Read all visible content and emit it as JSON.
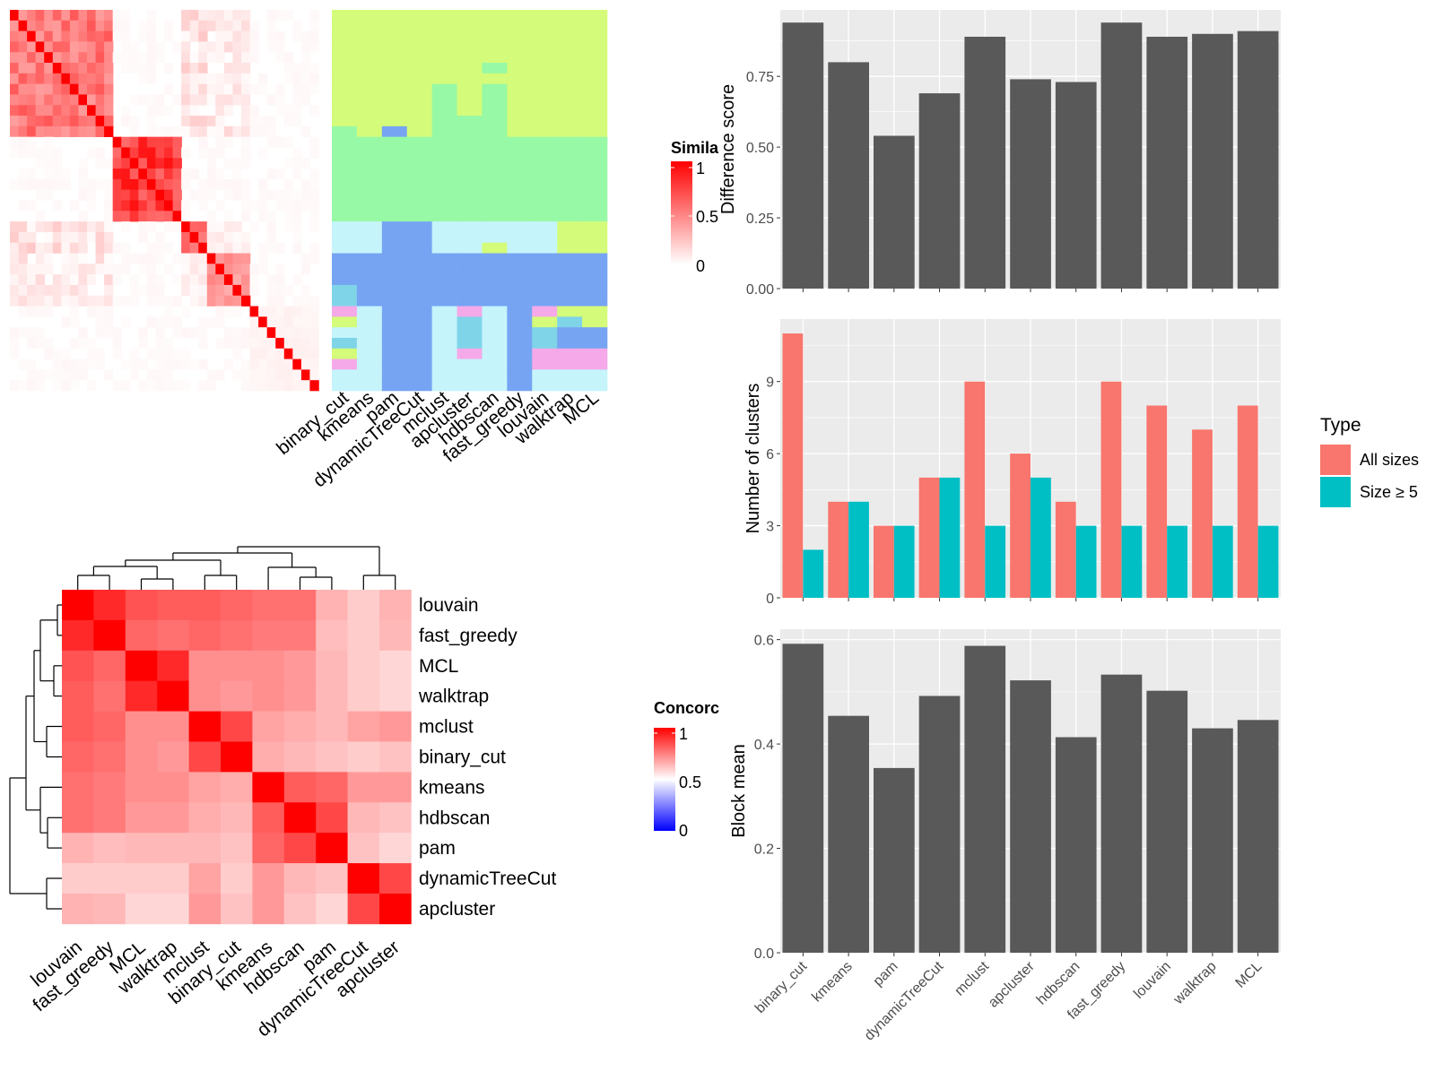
{
  "colors": {
    "panel_bg": "#EBEBEB",
    "grid": "#FFFFFF",
    "bar": "#595959",
    "all_sizes": "#F8766D",
    "size_ge_5": "#00BFC4",
    "heat_high": "#FF0000",
    "heat_low": "#FFFFFF",
    "concord_low": "#0000FF"
  },
  "chart_data": [
    {
      "type": "heatmap",
      "id": "similarity",
      "legend": {
        "title": "Simila",
        "ticks": [
          "1",
          "0.5",
          "0"
        ]
      },
      "groups": [
        {
          "n": 12,
          "base": 0.55
        },
        {
          "n": 8,
          "base": 0.78
        },
        {
          "n": 3,
          "base": 0.62
        },
        {
          "n": 5,
          "base": 0.42
        },
        {
          "n": 8,
          "base": 0.05
        }
      ],
      "class_colors": {
        "A": "#D4FB79",
        "B": "#97F9A5",
        "C": "#C5F4FB",
        "D": "#76A4F3",
        "E": "#7FD4E8",
        "F": "#F5A9E8"
      },
      "class_columns": [
        "binary_cut",
        "kmeans",
        "pam",
        "dynamicTreeCut",
        "mclust",
        "apcluster",
        "hdbscan",
        "fast_greedy",
        "louvain",
        "walktrap",
        "MCL"
      ],
      "class_rows": [
        "AAAAAAAAAAA",
        "AAAAAAAAAAA",
        "AAAAAAAAAAA",
        "AAAAAAAAAAA",
        "AAAAAAAAAAA",
        "AAAAAABAAAA",
        "AAAAAAAAAAA",
        "AAAABABAAAA",
        "AAAABABAAAA",
        "AAAABABAAAA",
        "AAAABBBAAAA",
        "BADABBBAAAA",
        "BBBBBBBBBBB",
        "BBBBBBBBBBB",
        "BBBBBBBBBBB",
        "BBBBBBBBBBB",
        "BBBBBBBBBBB",
        "BBBBBBBBBBB",
        "BBBBBBBBBBB",
        "BBBBBBBBBBB",
        "CCDDCCCCCAA",
        "CCDDCCCCCAA",
        "CCDDCCACCAA",
        "DDDDDDDDDDD",
        "DDDDDDDDDDD",
        "DDDDDDDDDDD",
        "EDDDDDDDDDD",
        "EDDDDDDDDDD",
        "FCDDCFCDFAA",
        "ACDDCECDAEA",
        "CCDDCECDEDD",
        "ECDDCECDEDD",
        "ACDDCFCDFFF",
        "FCDDCCCDFFF",
        "CCDDCCCDCCC",
        "CCDDCCCDCCC"
      ]
    },
    {
      "type": "heatmap",
      "id": "concordance",
      "legend": {
        "title": "Concorc",
        "ticks": [
          "1",
          "0.5",
          "0"
        ]
      },
      "rows": [
        "louvain",
        "fast_greedy",
        "MCL",
        "walktrap",
        "mclust",
        "binary_cut",
        "kmeans",
        "hdbscan",
        "pam",
        "dynamicTreeCut",
        "apcluster"
      ],
      "cols": [
        "louvain",
        "fast_greedy",
        "MCL",
        "walktrap",
        "mclust",
        "binary_cut",
        "kmeans",
        "hdbscan",
        "pam",
        "dynamicTreeCut",
        "apcluster"
      ],
      "values": [
        [
          1.0,
          0.92,
          0.84,
          0.82,
          0.82,
          0.8,
          0.78,
          0.78,
          0.65,
          0.6,
          0.65
        ],
        [
          0.92,
          1.0,
          0.8,
          0.78,
          0.8,
          0.78,
          0.76,
          0.76,
          0.63,
          0.6,
          0.64
        ],
        [
          0.84,
          0.8,
          1.0,
          0.92,
          0.72,
          0.72,
          0.72,
          0.7,
          0.64,
          0.6,
          0.58
        ],
        [
          0.82,
          0.78,
          0.92,
          1.0,
          0.72,
          0.7,
          0.72,
          0.7,
          0.64,
          0.6,
          0.58
        ],
        [
          0.82,
          0.8,
          0.72,
          0.72,
          1.0,
          0.86,
          0.68,
          0.66,
          0.64,
          0.68,
          0.7
        ],
        [
          0.8,
          0.78,
          0.72,
          0.7,
          0.86,
          1.0,
          0.66,
          0.64,
          0.62,
          0.6,
          0.62
        ],
        [
          0.78,
          0.76,
          0.72,
          0.72,
          0.68,
          0.66,
          1.0,
          0.82,
          0.8,
          0.7,
          0.7
        ],
        [
          0.78,
          0.76,
          0.7,
          0.7,
          0.66,
          0.64,
          0.82,
          1.0,
          0.86,
          0.64,
          0.62
        ],
        [
          0.65,
          0.63,
          0.64,
          0.64,
          0.64,
          0.62,
          0.8,
          0.86,
          1.0,
          0.62,
          0.58
        ],
        [
          0.6,
          0.6,
          0.6,
          0.6,
          0.68,
          0.6,
          0.7,
          0.64,
          0.62,
          1.0,
          0.86
        ],
        [
          0.65,
          0.64,
          0.58,
          0.58,
          0.7,
          0.62,
          0.7,
          0.62,
          0.58,
          0.86,
          1.0
        ]
      ]
    },
    {
      "type": "bar",
      "id": "difference",
      "categories": [
        "binary_cut",
        "kmeans",
        "pam",
        "dynamicTreeCut",
        "mclust",
        "apcluster",
        "hdbscan",
        "fast_greedy",
        "louvain",
        "walktrap",
        "MCL"
      ],
      "values": [
        0.94,
        0.8,
        0.54,
        0.69,
        0.89,
        0.74,
        0.73,
        0.94,
        0.89,
        0.9,
        0.91
      ],
      "ylabel": "Difference score",
      "ylim": [
        0,
        0.985
      ],
      "yticks": [
        "0.00",
        "0.25",
        "0.50",
        "0.75"
      ],
      "ytick_values": [
        0,
        0.25,
        0.5,
        0.75
      ],
      "grid": true
    },
    {
      "type": "bar",
      "id": "num_clusters",
      "categories": [
        "binary_cut",
        "kmeans",
        "pam",
        "dynamicTreeCut",
        "mclust",
        "apcluster",
        "hdbscan",
        "fast_greedy",
        "louvain",
        "walktrap",
        "MCL"
      ],
      "series": [
        {
          "name": "All sizes",
          "values": [
            11,
            4,
            3,
            5,
            9,
            6,
            4,
            9,
            8,
            7,
            8
          ]
        },
        {
          "name": "Size ≥ 5",
          "values": [
            2,
            4,
            3,
            5,
            3,
            5,
            3,
            3,
            3,
            3,
            3
          ]
        }
      ],
      "ylabel": "Number of clusters",
      "ylim": [
        0,
        11.6
      ],
      "yticks": [
        "0",
        "3",
        "6",
        "9"
      ],
      "ytick_values": [
        0,
        3,
        6,
        9
      ],
      "legend": {
        "title": "Type",
        "position": "right"
      },
      "grid": true
    },
    {
      "type": "bar",
      "id": "block_mean",
      "categories": [
        "binary_cut",
        "kmeans",
        "pam",
        "dynamicTreeCut",
        "mclust",
        "apcluster",
        "hdbscan",
        "fast_greedy",
        "louvain",
        "walktrap",
        "MCL"
      ],
      "values": [
        0.592,
        0.454,
        0.354,
        0.492,
        0.588,
        0.522,
        0.413,
        0.533,
        0.502,
        0.43,
        0.446
      ],
      "ylabel": "Block mean",
      "ylim": [
        0,
        0.62
      ],
      "yticks": [
        "0.0",
        "0.2",
        "0.4",
        "0.6"
      ],
      "ytick_values": [
        0,
        0.2,
        0.4,
        0.6
      ],
      "grid": true
    }
  ]
}
